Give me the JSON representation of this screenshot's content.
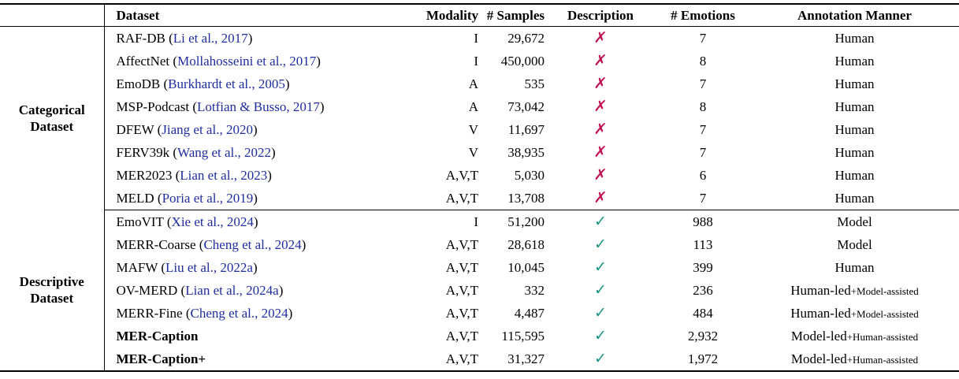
{
  "colors": {
    "link_blue": "#1f2e9e",
    "cross_red": "#c20f53",
    "check_teal": "#1a9384",
    "text_ink": "#000000",
    "background": "#ffffff"
  },
  "table": {
    "headers": {
      "group": "",
      "dataset": "Dataset",
      "modality": "Modality",
      "samples": "# Samples",
      "description": "Description",
      "emotions": "# Emotions",
      "annotation": "Annotation Manner"
    },
    "groups": [
      {
        "label": "Categorical Dataset",
        "rows": [
          {
            "name": "RAF-DB",
            "name_weight": "normal",
            "cite_open": " (",
            "citation": "Li et al., 2017",
            "cite_close": ")",
            "modality": "I",
            "samples": "29,672",
            "mark_glyph": "✗",
            "mark_type": "cross",
            "emotions": "7",
            "annotation": "Human",
            "annotation_small": ""
          },
          {
            "name": "AffectNet",
            "name_weight": "normal",
            "cite_open": " (",
            "citation": "Mollahosseini et al., 2017",
            "cite_close": ")",
            "modality": "I",
            "samples": "450,000",
            "mark_glyph": "✗",
            "mark_type": "cross",
            "emotions": "8",
            "annotation": "Human",
            "annotation_small": ""
          },
          {
            "name": "EmoDB",
            "name_weight": "normal",
            "cite_open": " (",
            "citation": "Burkhardt et al., 2005",
            "cite_close": ")",
            "modality": "A",
            "samples": "535",
            "mark_glyph": "✗",
            "mark_type": "cross",
            "emotions": "7",
            "annotation": "Human",
            "annotation_small": ""
          },
          {
            "name": "MSP-Podcast",
            "name_weight": "normal",
            "cite_open": " (",
            "citation": "Lotfian & Busso, 2017",
            "cite_close": ")",
            "modality": "A",
            "samples": "73,042",
            "mark_glyph": "✗",
            "mark_type": "cross",
            "emotions": "8",
            "annotation": "Human",
            "annotation_small": ""
          },
          {
            "name": "DFEW",
            "name_weight": "normal",
            "cite_open": " (",
            "citation": "Jiang et al., 2020",
            "cite_close": ")",
            "modality": "V",
            "samples": "11,697",
            "mark_glyph": "✗",
            "mark_type": "cross",
            "emotions": "7",
            "annotation": "Human",
            "annotation_small": ""
          },
          {
            "name": "FERV39k",
            "name_weight": "normal",
            "cite_open": " (",
            "citation": "Wang et al., 2022",
            "cite_close": ")",
            "modality": "V",
            "samples": "38,935",
            "mark_glyph": "✗",
            "mark_type": "cross",
            "emotions": "7",
            "annotation": "Human",
            "annotation_small": ""
          },
          {
            "name": "MER2023",
            "name_weight": "normal",
            "cite_open": " (",
            "citation": "Lian et al., 2023",
            "cite_close": ")",
            "modality": "A,V,T",
            "samples": "5,030",
            "mark_glyph": "✗",
            "mark_type": "cross",
            "emotions": "6",
            "annotation": "Human",
            "annotation_small": ""
          },
          {
            "name": "MELD",
            "name_weight": "normal",
            "cite_open": " (",
            "citation": "Poria et al., 2019",
            "cite_close": ")",
            "modality": "A,V,T",
            "samples": "13,708",
            "mark_glyph": "✗",
            "mark_type": "cross",
            "emotions": "7",
            "annotation": "Human",
            "annotation_small": ""
          }
        ]
      },
      {
        "label": "Descriptive Dataset",
        "rows": [
          {
            "name": "EmoVIT",
            "name_weight": "normal",
            "cite_open": " (",
            "citation": "Xie et al., 2024",
            "cite_close": ")",
            "modality": "I",
            "samples": "51,200",
            "mark_glyph": "✓",
            "mark_type": "check",
            "emotions": "988",
            "annotation": "Model",
            "annotation_small": ""
          },
          {
            "name": "MERR-Coarse",
            "name_weight": "normal",
            "cite_open": " (",
            "citation": "Cheng et al., 2024",
            "cite_close": ")",
            "modality": "A,V,T",
            "samples": "28,618",
            "mark_glyph": "✓",
            "mark_type": "check",
            "emotions": "113",
            "annotation": "Model",
            "annotation_small": ""
          },
          {
            "name": "MAFW",
            "name_weight": "normal",
            "cite_open": " (",
            "citation": "Liu et al., 2022a",
            "cite_close": ")",
            "modality": "A,V,T",
            "samples": "10,045",
            "mark_glyph": "✓",
            "mark_type": "check",
            "emotions": "399",
            "annotation": "Human",
            "annotation_small": ""
          },
          {
            "name": "OV-MERD",
            "name_weight": "normal",
            "cite_open": " (",
            "citation": "Lian et al., 2024a",
            "cite_close": ")",
            "modality": "A,V,T",
            "samples": "332",
            "mark_glyph": "✓",
            "mark_type": "check",
            "emotions": "236",
            "annotation": "Human-led",
            "annotation_small": "+Model-assisted"
          },
          {
            "name": "MERR-Fine",
            "name_weight": "normal",
            "cite_open": " (",
            "citation": "Cheng et al., 2024",
            "cite_close": ")",
            "modality": "A,V,T",
            "samples": "4,487",
            "mark_glyph": "✓",
            "mark_type": "check",
            "emotions": "484",
            "annotation": "Human-led",
            "annotation_small": "+Model-assisted"
          },
          {
            "name": "MER-Caption",
            "name_weight": "bold",
            "cite_open": "",
            "citation": "",
            "cite_close": "",
            "modality": "A,V,T",
            "samples": "115,595",
            "mark_glyph": "✓",
            "mark_type": "check",
            "emotions": "2,932",
            "annotation": "Model-led",
            "annotation_small": "+Human-assisted"
          },
          {
            "name": "MER-Caption+",
            "name_weight": "bold",
            "cite_open": "",
            "citation": "",
            "cite_close": "",
            "modality": "A,V,T",
            "samples": "31,327",
            "mark_glyph": "✓",
            "mark_type": "check",
            "emotions": "1,972",
            "annotation": "Model-led",
            "annotation_small": "+Human-assisted"
          }
        ]
      }
    ]
  }
}
